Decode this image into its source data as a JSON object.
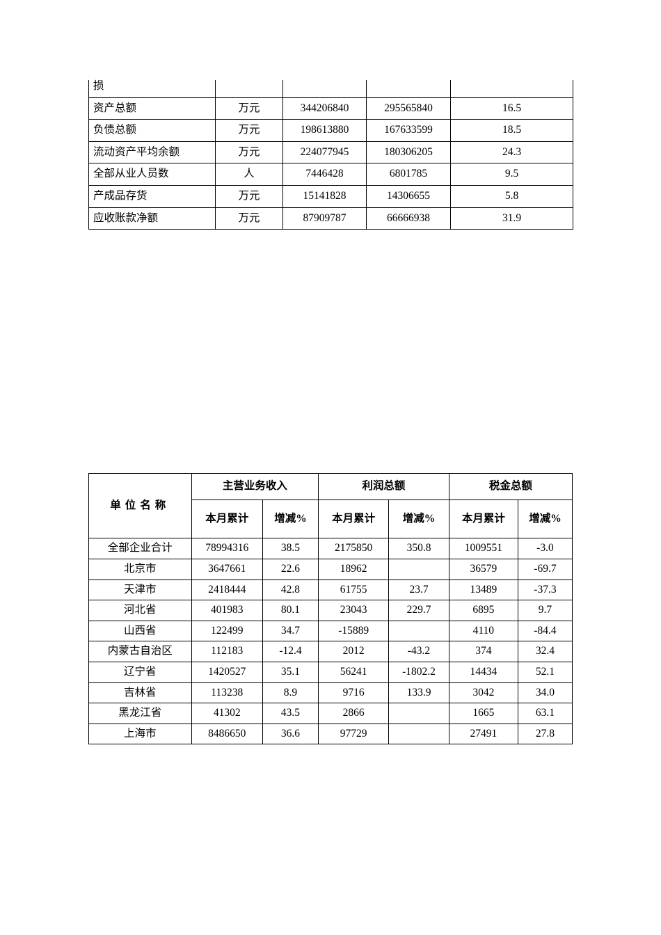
{
  "table1": {
    "rows": [
      {
        "label": "损",
        "unit": "",
        "v1": "",
        "v2": "",
        "v3": ""
      },
      {
        "label": "资产总额",
        "unit": "万元",
        "v1": "344206840",
        "v2": "295565840",
        "v3": "16.5"
      },
      {
        "label": "负债总额",
        "unit": "万元",
        "v1": "198613880",
        "v2": "167633599",
        "v3": "18.5"
      },
      {
        "label": "流动资产平均余额",
        "unit": "万元",
        "v1": "224077945",
        "v2": "180306205",
        "v3": "24.3"
      },
      {
        "label": "全部从业人员数",
        "unit": "人",
        "v1": "7446428",
        "v2": "6801785",
        "v3": "9.5"
      },
      {
        "label": "产成品存货",
        "unit": "万元",
        "v1": "15141828",
        "v2": "14306655",
        "v3": "5.8"
      },
      {
        "label": "应收账款净额",
        "unit": "万元",
        "v1": "87909787",
        "v2": "66666938",
        "v3": "31.9"
      }
    ]
  },
  "table2": {
    "group_headers": [
      "主营业务收入",
      "利润总额",
      "税金总额"
    ],
    "sub_headers": {
      "cum": "本月累计",
      "pct": "增减%"
    },
    "name_header": "单位名称",
    "rows": [
      {
        "name": "全部企业合计",
        "a": "78994316",
        "ap": "38.5",
        "b": "2175850",
        "bp": "350.8",
        "c": "1009551",
        "cp": "-3.0"
      },
      {
        "name": "北京市",
        "a": "3647661",
        "ap": "22.6",
        "b": "18962",
        "bp": "",
        "c": "36579",
        "cp": "-69.7"
      },
      {
        "name": "天津市",
        "a": "2418444",
        "ap": "42.8",
        "b": "61755",
        "bp": "23.7",
        "c": "13489",
        "cp": "-37.3"
      },
      {
        "name": "河北省",
        "a": "401983",
        "ap": "80.1",
        "b": "23043",
        "bp": "229.7",
        "c": "6895",
        "cp": "9.7"
      },
      {
        "name": "山西省",
        "a": "122499",
        "ap": "34.7",
        "b": "-15889",
        "bp": "",
        "c": "4110",
        "cp": "-84.4"
      },
      {
        "name": "内蒙古自治区",
        "a": "112183",
        "ap": "-12.4",
        "b": "2012",
        "bp": "-43.2",
        "c": "374",
        "cp": "32.4"
      },
      {
        "name": "辽宁省",
        "a": "1420527",
        "ap": "35.1",
        "b": "56241",
        "bp": "-1802.2",
        "c": "14434",
        "cp": "52.1"
      },
      {
        "name": "吉林省",
        "a": "113238",
        "ap": "8.9",
        "b": "9716",
        "bp": "133.9",
        "c": "3042",
        "cp": "34.0"
      },
      {
        "name": "黑龙江省",
        "a": "41302",
        "ap": "43.5",
        "b": "2866",
        "bp": "",
        "c": "1665",
        "cp": "63.1"
      },
      {
        "name": "上海市",
        "a": "8486650",
        "ap": "36.6",
        "b": "97729",
        "bp": "",
        "c": "27491",
        "cp": "27.8"
      }
    ]
  }
}
